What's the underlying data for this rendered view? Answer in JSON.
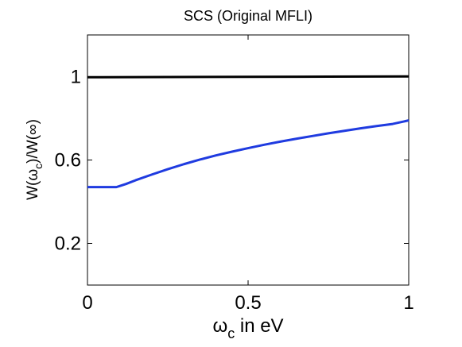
{
  "chart_data": {
    "type": "line",
    "title": "SCS (Original MFLI)",
    "xlabel": {
      "base": "ω",
      "sub": "c",
      "rest": " in eV"
    },
    "ylabel": {
      "a": "W(ω",
      "sub": "c",
      "b": ")/W(∞)"
    },
    "xlim": [
      0,
      1
    ],
    "ylim": [
      0,
      1.2
    ],
    "xticks": [
      0,
      0.5,
      1
    ],
    "xtick_labels": [
      "0",
      "0.5",
      "1"
    ],
    "yticks": [
      0.2,
      0.6,
      1
    ],
    "ytick_labels": [
      "0.2",
      "0.6",
      "1"
    ],
    "grid": false,
    "legend": "none",
    "series": [
      {
        "color": "#000000",
        "x": [
          0,
          0.25,
          0.5,
          0.75,
          1.0
        ],
        "y": [
          0.997,
          0.998,
          0.999,
          1.0,
          1.001
        ]
      },
      {
        "color": "#1f3be0",
        "x": [
          0,
          0.05,
          0.09,
          0.1,
          0.12,
          0.15,
          0.2,
          0.25,
          0.3,
          0.35,
          0.4,
          0.45,
          0.5,
          0.55,
          0.6,
          0.65,
          0.7,
          0.75,
          0.8,
          0.85,
          0.9,
          0.95,
          1.0
        ],
        "y": [
          0.47,
          0.47,
          0.47,
          0.475,
          0.485,
          0.503,
          0.53,
          0.556,
          0.58,
          0.602,
          0.622,
          0.64,
          0.657,
          0.673,
          0.688,
          0.702,
          0.715,
          0.728,
          0.74,
          0.752,
          0.763,
          0.773,
          0.79
        ]
      }
    ]
  }
}
